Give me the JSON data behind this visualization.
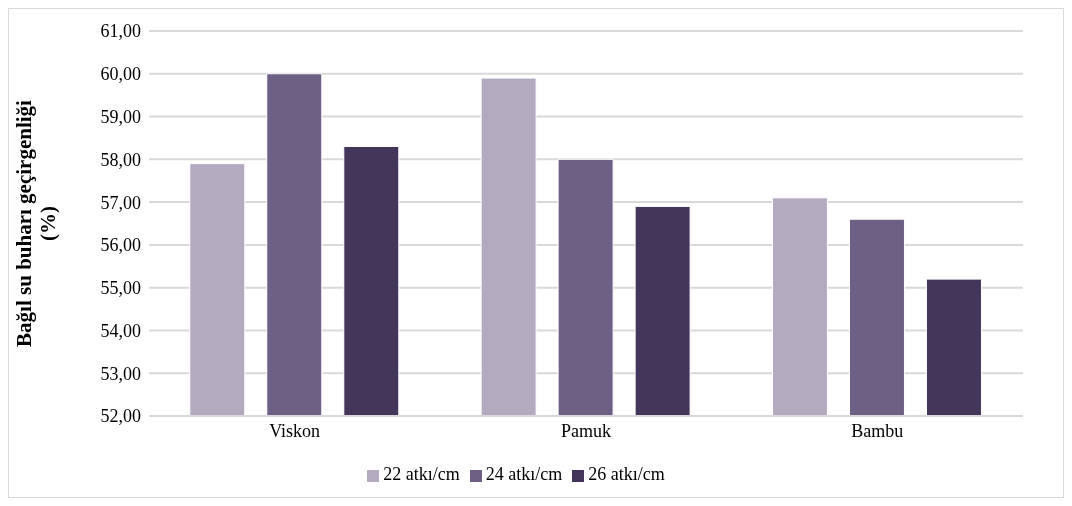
{
  "chart_data": {
    "type": "bar",
    "ylabel": "Bağıl su buharı geçirgenliği (%)",
    "categories": [
      "Viskon",
      "Pamuk",
      "Bambu"
    ],
    "series": [
      {
        "name": "22 atkı/cm",
        "color": "#b3aac0",
        "values": [
          57.9,
          59.9,
          57.1
        ]
      },
      {
        "name": "24 atkı/cm",
        "color": "#6e5f85",
        "values": [
          60.0,
          58.0,
          56.6
        ]
      },
      {
        "name": "26 atkı/cm",
        "color": "#43365a",
        "values": [
          58.3,
          56.9,
          55.2
        ]
      }
    ],
    "ylim": [
      52,
      61
    ],
    "yticks": [
      {
        "value": 52,
        "label": "52,00"
      },
      {
        "value": 53,
        "label": "53,00"
      },
      {
        "value": 54,
        "label": "54,00"
      },
      {
        "value": 55,
        "label": "55,00"
      },
      {
        "value": 56,
        "label": "56,00"
      },
      {
        "value": 57,
        "label": "57,00"
      },
      {
        "value": 58,
        "label": "58,00"
      },
      {
        "value": 59,
        "label": "59,00"
      },
      {
        "value": 60,
        "label": "60,00"
      },
      {
        "value": 61,
        "label": "61,00"
      }
    ],
    "grid": "y",
    "legend": "bottom"
  }
}
